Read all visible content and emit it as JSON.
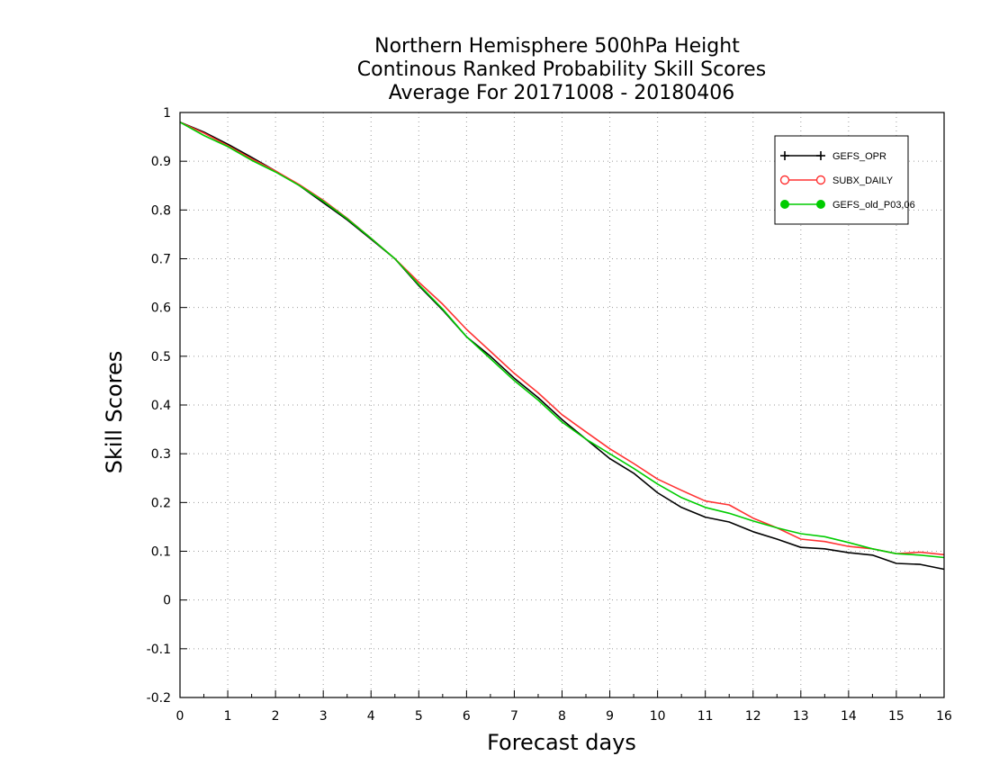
{
  "chart_data": {
    "type": "line",
    "title": [
      "Northern Hemisphere 500hPa Height",
      "Continous Ranked Probability Skill Scores",
      "Average For 20171008 - 20180406"
    ],
    "xlabel": "Forecast days",
    "ylabel": "Skill Scores",
    "xlim": [
      0,
      16
    ],
    "ylim": [
      -0.2,
      1
    ],
    "x_ticks": [
      0,
      1,
      2,
      3,
      4,
      5,
      6,
      7,
      8,
      9,
      10,
      11,
      12,
      13,
      14,
      15,
      16
    ],
    "y_ticks": [
      -0.2,
      -0.1,
      0,
      0.1,
      0.2,
      0.3,
      0.4,
      0.5,
      0.6,
      0.7,
      0.8,
      0.9,
      1
    ],
    "y_tick_labels": [
      "-0.2",
      "-0.1",
      "0",
      "0.1",
      "0.2",
      "0.3",
      "0.4",
      "0.5",
      "0.6",
      "0.7",
      "0.8",
      "0.9",
      "1"
    ],
    "grid": true,
    "legend_position": "top-right",
    "x": [
      0,
      0.5,
      1,
      1.5,
      2,
      2.5,
      3,
      3.5,
      4,
      4.5,
      5,
      5.5,
      6,
      6.5,
      7,
      7.5,
      8,
      8.5,
      9,
      9.5,
      10,
      10.5,
      11,
      11.5,
      12,
      12.5,
      13,
      13.5,
      14,
      14.5,
      15,
      15.5,
      16
    ],
    "series": [
      {
        "name": "GEFS_OPR",
        "color": "#000000",
        "marker": "plus",
        "values": [
          0.98,
          0.96,
          0.935,
          0.908,
          0.88,
          0.85,
          0.815,
          0.78,
          0.74,
          0.7,
          0.645,
          0.595,
          0.54,
          0.5,
          0.455,
          0.415,
          0.37,
          0.33,
          0.29,
          0.26,
          0.22,
          0.19,
          0.17,
          0.16,
          0.14,
          0.125,
          0.108,
          0.105,
          0.097,
          0.092,
          0.075,
          0.073,
          0.063
        ]
      },
      {
        "name": "SUBX_DAILY",
        "color": "#ff3333",
        "marker": "open-circle",
        "values": [
          0.98,
          0.958,
          0.932,
          0.905,
          0.88,
          0.852,
          0.82,
          0.783,
          0.742,
          0.7,
          0.652,
          0.607,
          0.555,
          0.51,
          0.465,
          0.425,
          0.38,
          0.345,
          0.31,
          0.28,
          0.248,
          0.225,
          0.203,
          0.195,
          0.168,
          0.148,
          0.125,
          0.12,
          0.11,
          0.105,
          0.095,
          0.098,
          0.093
        ]
      },
      {
        "name": "GEFS_old_P03,06",
        "color": "#00cc00",
        "marker": "filled-circle",
        "values": [
          0.98,
          0.953,
          0.93,
          0.902,
          0.878,
          0.85,
          0.818,
          0.782,
          0.742,
          0.7,
          0.647,
          0.597,
          0.54,
          0.495,
          0.45,
          0.41,
          0.365,
          0.33,
          0.3,
          0.27,
          0.238,
          0.21,
          0.19,
          0.178,
          0.162,
          0.148,
          0.136,
          0.13,
          0.118,
          0.105,
          0.095,
          0.092,
          0.087
        ]
      }
    ]
  }
}
